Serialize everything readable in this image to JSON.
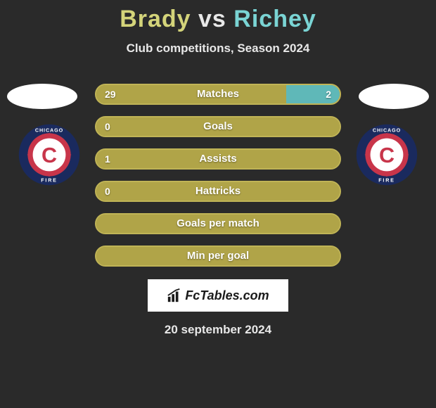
{
  "title": {
    "player1": "Brady",
    "vs": "vs",
    "player2": "Richey"
  },
  "subtitle": "Club competitions, Season 2024",
  "colors": {
    "background": "#2a2a2a",
    "player1_accent": "#d4d47a",
    "player2_accent": "#7ad4d4",
    "bar_base": "#9a8e3a",
    "bar_border": "#c0b456",
    "bar_fill_left": "#b0a448",
    "bar_fill_right": "#5fb8b8",
    "text": "#e8e8e8"
  },
  "club_badge": {
    "outer_ring": "#1a2a5e",
    "inner_ring": "#c8354a",
    "center_bg": "#ffffff",
    "c_letter": "#c8354a",
    "text_top": "CHICAGO",
    "text_bottom": "FIRE"
  },
  "bars": [
    {
      "label": "Matches",
      "left_val": "29",
      "right_val": "2",
      "left_pct": 78,
      "right_pct": 22,
      "show_left": true,
      "show_right": true
    },
    {
      "label": "Goals",
      "left_val": "0",
      "right_val": "",
      "left_pct": 100,
      "right_pct": 0,
      "show_left": true,
      "show_right": false
    },
    {
      "label": "Assists",
      "left_val": "1",
      "right_val": "",
      "left_pct": 100,
      "right_pct": 0,
      "show_left": true,
      "show_right": false
    },
    {
      "label": "Hattricks",
      "left_val": "0",
      "right_val": "",
      "left_pct": 100,
      "right_pct": 0,
      "show_left": true,
      "show_right": false
    },
    {
      "label": "Goals per match",
      "left_val": "",
      "right_val": "",
      "left_pct": 100,
      "right_pct": 0,
      "show_left": false,
      "show_right": false
    },
    {
      "label": "Min per goal",
      "left_val": "",
      "right_val": "",
      "left_pct": 100,
      "right_pct": 0,
      "show_left": false,
      "show_right": false
    }
  ],
  "branding": "FcTables.com",
  "date": "20 september 2024"
}
